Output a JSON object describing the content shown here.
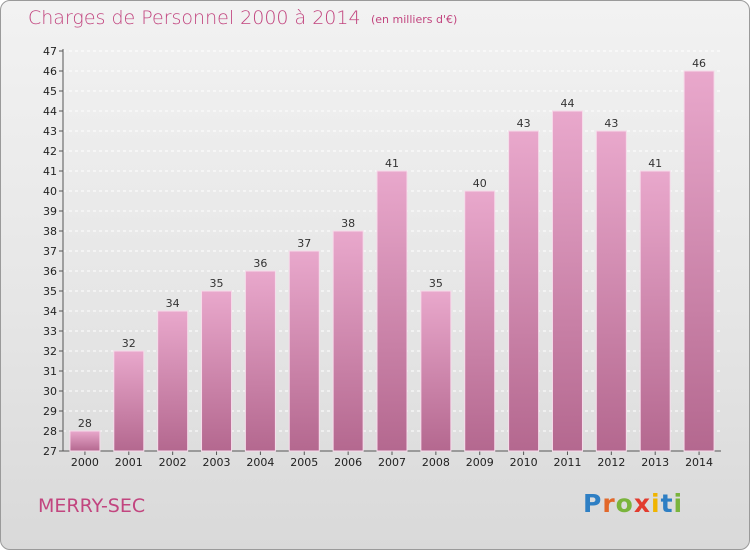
{
  "header": {
    "title": "Charges de Personnel 2000 à 2014",
    "subtitle": "(en milliers d'€)"
  },
  "footer": {
    "place": "MERRY-SEC",
    "logo": {
      "letters": [
        "P",
        "r",
        "o",
        "x",
        "i",
        "t",
        "i"
      ],
      "colors": [
        "#2e7fc4",
        "#e2682a",
        "#7ab43c",
        "#e23b2e",
        "#f0b400",
        "#2e7fc4",
        "#7ab43c"
      ]
    }
  },
  "colors": {
    "bar_top": "#e9a8cc",
    "bar_bottom": "#b4688f",
    "bar_stroke": "#f6dbea",
    "text_accent": "#c2457f",
    "grid": "#ffffff"
  },
  "chart_data": {
    "type": "bar",
    "title": "Charges de Personnel 2000 à 2014",
    "subtitle": "(en milliers d'€)",
    "categories": [
      "2000",
      "2001",
      "2002",
      "2003",
      "2004",
      "2005",
      "2006",
      "2007",
      "2008",
      "2009",
      "2010",
      "2011",
      "2012",
      "2013",
      "2014"
    ],
    "values": [
      28,
      32,
      34,
      35,
      36,
      37,
      38,
      41,
      35,
      40,
      43,
      44,
      43,
      41,
      46
    ],
    "ylim": [
      27,
      47
    ],
    "yticks": [
      27,
      28,
      29,
      30,
      31,
      32,
      33,
      34,
      35,
      36,
      37,
      38,
      39,
      40,
      41,
      42,
      43,
      44,
      45,
      46,
      47
    ],
    "grid": true,
    "grid_style": "dashed"
  }
}
